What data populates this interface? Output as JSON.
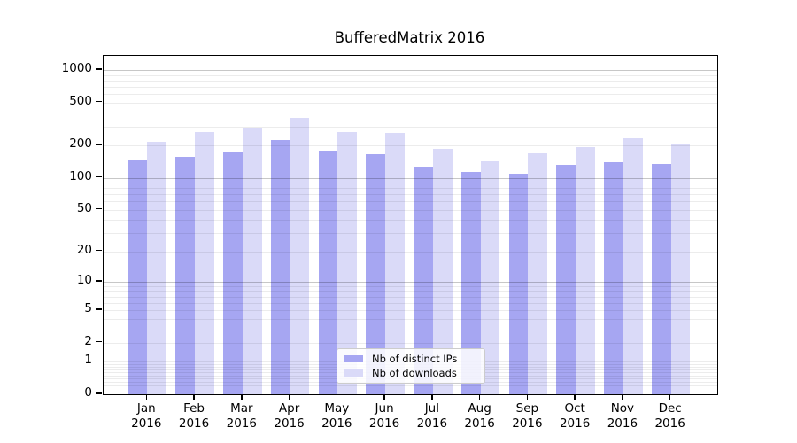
{
  "figure": {
    "background": "#ffffff"
  },
  "chart_data": {
    "type": "bar",
    "title": "BufferedMatrix 2016",
    "xlabel": "",
    "ylabel": "",
    "categories": [
      "Jan 2016",
      "Feb 2016",
      "Mar 2016",
      "Apr 2016",
      "May 2016",
      "Jun 2016",
      "Jul 2016",
      "Aug 2016",
      "Sep 2016",
      "Oct 2016",
      "Nov 2016",
      "Dec 2016"
    ],
    "series": [
      {
        "name": "Nb of distinct IPs",
        "color": "#a6a6f2",
        "values": [
          146,
          156,
          171,
          224,
          179,
          166,
          125,
          114,
          108,
          133,
          140,
          135
        ]
      },
      {
        "name": "Nb of downloads",
        "color": "#dadaf8",
        "values": [
          218,
          264,
          289,
          360,
          264,
          259,
          185,
          141,
          170,
          191,
          231,
          205
        ]
      }
    ],
    "yscale": "log1p",
    "y_ticks": [
      0,
      1,
      2,
      5,
      10,
      20,
      50,
      100,
      200,
      500,
      1000
    ],
    "ylim": [
      0,
      1360
    ],
    "grid": true,
    "grid_major_values": [
      10,
      100,
      1000
    ],
    "legend_position": "lower-center-inside"
  }
}
